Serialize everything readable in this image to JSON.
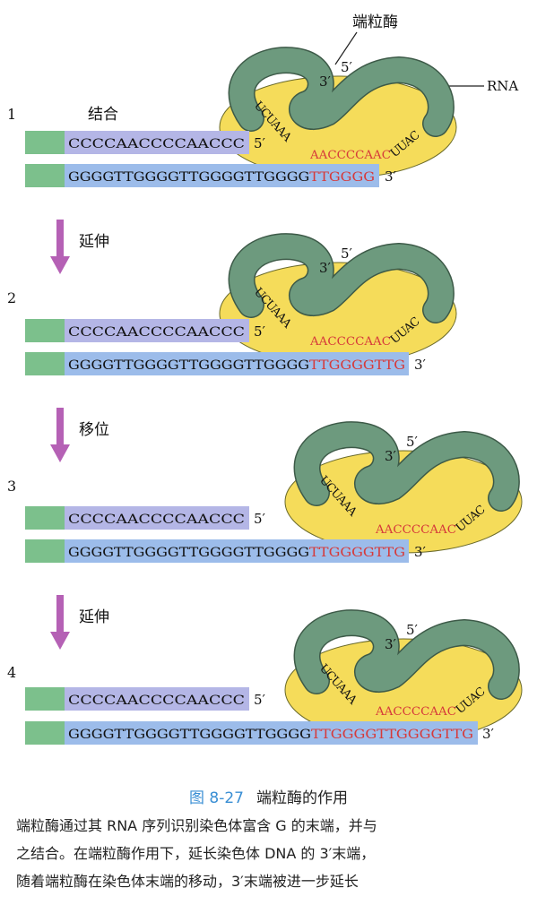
{
  "enzyme_label": "端粒酶",
  "rna_label": "RNA",
  "prime3": "3′",
  "prime5": "5′",
  "steps": [
    {
      "number": "1",
      "label": "结合",
      "top_strand": "CCCCAACCCCAACCC",
      "bottom_black": "GGGGTTGGGGTTGGGGTTGGGG",
      "bottom_red": "TTGGGG"
    },
    {
      "number": "2",
      "top_strand": "CCCCAACCCCAACCC",
      "bottom_black": "GGGGTTGGGGTTGGGGTTGGGG",
      "bottom_red": "TTGGGGTTG"
    },
    {
      "number": "3",
      "top_strand": "CCCCAACCCCAACCC",
      "bottom_black": "GGGGTTGGGGTTGGGGTTGGGG",
      "bottom_red": "TTGGGGTTG"
    },
    {
      "number": "4",
      "top_strand": "CCCCAACCCCAACCC",
      "bottom_black": "GGGGTTGGGGTTGGGGTTGGGG",
      "bottom_red": "TTGGGGTTGGGGTTG"
    }
  ],
  "arrows": [
    "延伸",
    "移位",
    "延伸"
  ],
  "rna_template": {
    "left": "UCUAAA",
    "middle": "AACCCCAAC",
    "right": "UUAC"
  },
  "caption": {
    "number": "图 8-27",
    "title": "端粒酶的作用",
    "lines": [
      "端粒酶通过其 RNA 序列识别染色体富含 G 的末端，并与",
      "之结合。在端粒酶作用下，延长染色体 DNA 的 3′末端，",
      "随着端粒酶在染色体末端的移动，3′末端被进一步延长"
    ]
  },
  "colors": {
    "green_block": "#7cc08c",
    "top_strand_bg": "#b4b6e6",
    "bottom_strand_bg": "#9cbcea",
    "enzyme_body": "#f5dc5a",
    "rna_loop": "#6d9a7e",
    "arrow": "#b561b5",
    "red_text": "#d63a3a",
    "caption_blue": "#3a8fd4"
  }
}
